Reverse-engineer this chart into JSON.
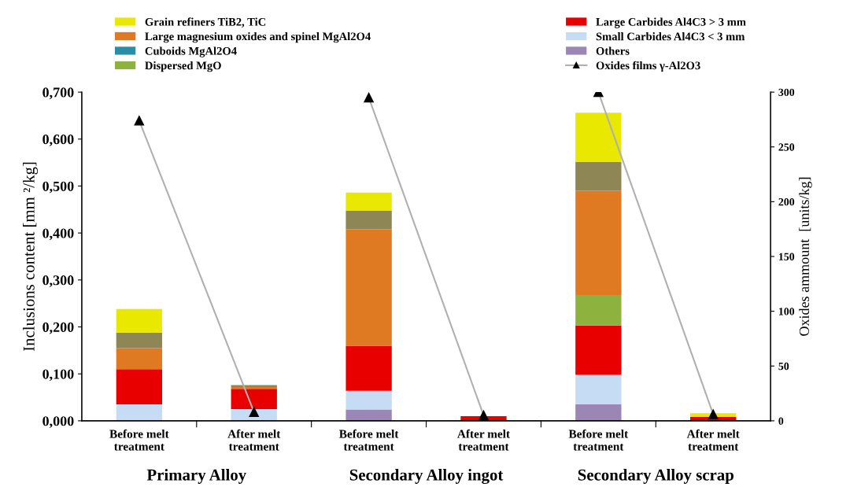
{
  "chart_data": {
    "type": "bar",
    "stacked": true,
    "categories": [
      "Before melt\ntreatment",
      "After melt\ntreatment",
      "Before melt\ntreatment",
      "After melt\ntreatment",
      "Before melt\ntreatment",
      "After melt\ntreatment"
    ],
    "ylabel": "Inclusions content [mm ²/kg]",
    "y2label": "Oxides ammount  [units/kg]",
    "ylim": [
      0,
      0.7
    ],
    "yticks": [
      {
        "value": 0,
        "label": "0,000"
      },
      {
        "value": 0.1,
        "label": "0,100"
      },
      {
        "value": 0.2,
        "label": "0,200"
      },
      {
        "value": 0.3,
        "label": "0,300"
      },
      {
        "value": 0.4,
        "label": "0,400"
      },
      {
        "value": 0.5,
        "label": "0,500"
      },
      {
        "value": 0.6,
        "label": "0,600"
      },
      {
        "value": 0.7,
        "label": "0,700"
      }
    ],
    "y2lim": [
      0,
      300
    ],
    "y2ticks": [
      0,
      50,
      100,
      150,
      200,
      250,
      300
    ],
    "series": [
      {
        "name": "Others",
        "color": "#9b87b5",
        "values": [
          0,
          0,
          0.024,
          0,
          0.035,
          0
        ]
      },
      {
        "name": "Small Carbides Al4C3 < 3 mm",
        "color": "#c6dcf5",
        "values": [
          0.035,
          0.025,
          0.04,
          0,
          0.063,
          0
        ]
      },
      {
        "name": "Large Carbides Al4C3 > 3 mm",
        "color": "#e80000",
        "values": [
          0.075,
          0.043,
          0.096,
          0.01,
          0.105,
          0.008
        ]
      },
      {
        "name": "Dispersed MgO",
        "color": "#8db33e",
        "values": [
          0,
          0,
          0,
          0,
          0.065,
          0
        ]
      },
      {
        "name": "Cuboids MgAl2O4",
        "color": "#2a8fa6",
        "values": [
          0,
          0,
          0,
          0,
          0,
          0
        ]
      },
      {
        "name": "Large magnesium oxides and spinel MgAl2O4",
        "color": "#e07a22",
        "values": [
          0.045,
          0.004,
          0.248,
          0,
          0.222,
          0
        ]
      },
      {
        "color": "#8f8656",
        "values": [
          0.033,
          0.004,
          0.039,
          0,
          0.061,
          0
        ]
      },
      {
        "name": "Grain refiners TiB2, TiC",
        "color": "#e8e800",
        "values": [
          0.05,
          0,
          0.039,
          0,
          0.105,
          0.008
        ]
      },
      {
        "name": "Oxides films γ-Al2O3",
        "type": "line",
        "axis": "y2",
        "color": "#b0b0b0",
        "marker": "triangle",
        "values": [
          274,
          8,
          295,
          5,
          300,
          6
        ]
      }
    ],
    "annotations": [
      "Primary Alloy",
      "Secondary Alloy ingot",
      "Secondary Alloy scrap"
    ],
    "legend": "top",
    "grid": false
  }
}
